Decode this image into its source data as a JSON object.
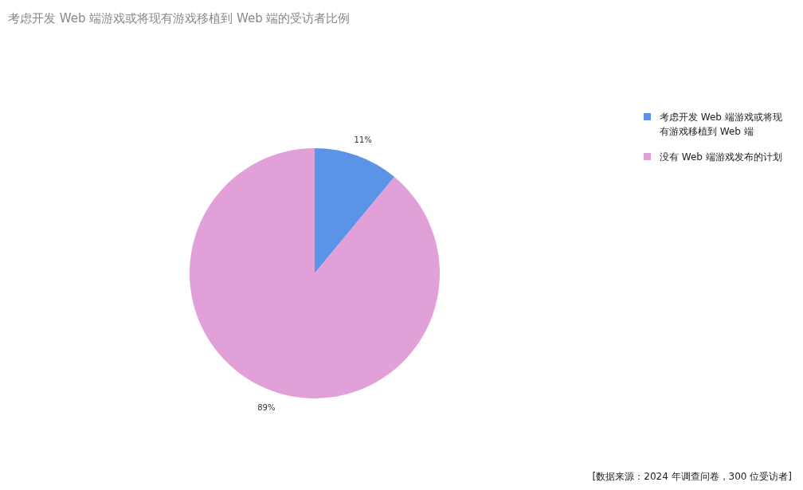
{
  "chart_data": {
    "type": "pie",
    "title": "考虑开发 Web 端游戏或将现有游戏移植到 Web 端的受访者比例",
    "categories": [
      "考虑开发 Web 端游戏或将现有游戏移植到 Web 端",
      "没有 Web 端游戏发布的计划"
    ],
    "values": [
      11,
      89
    ],
    "colors": [
      "#5b93e6",
      "#e2a0d8"
    ],
    "value_labels": [
      "11%",
      "89%"
    ],
    "legend": "top right",
    "annotations": [
      "[数据来源：2024 年调查问卷，300 位受访者]"
    ]
  }
}
